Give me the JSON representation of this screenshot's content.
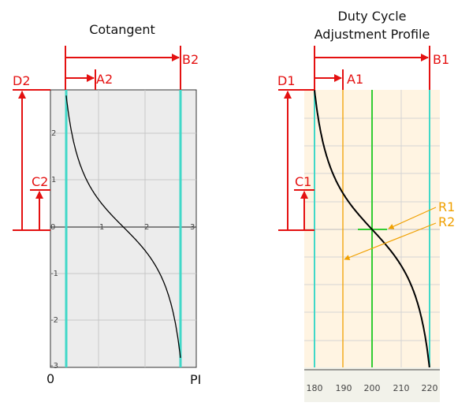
{
  "colors": {
    "measure": "#e41111",
    "limit_line": "#40d8c8",
    "midpoint_line": "#33cc33",
    "reference": "#f0a000",
    "curve": "#000000",
    "left_plot_bg": "#ececec",
    "right_plot_bg": "#fff4e2"
  },
  "left_figure": {
    "title": "Cotangent",
    "x_ticks": [
      "1",
      "2",
      "3"
    ],
    "y_ticks": [
      "2",
      "1",
      "0",
      "-1",
      "-2",
      "-3"
    ],
    "x_start_label": "0",
    "x_end_label": "PI",
    "measures": {
      "a": "A2",
      "b": "B2",
      "c": "C2",
      "d": "D2"
    }
  },
  "right_figure": {
    "title_line1": "Duty Cycle",
    "title_line2": "Adjustment Profile",
    "x_ticks": [
      "180",
      "190",
      "200",
      "210",
      "220"
    ],
    "measures": {
      "a": "A1",
      "b": "B1",
      "c": "C1",
      "d": "D1"
    },
    "references": {
      "r1": "R1",
      "r2": "R2"
    }
  }
}
